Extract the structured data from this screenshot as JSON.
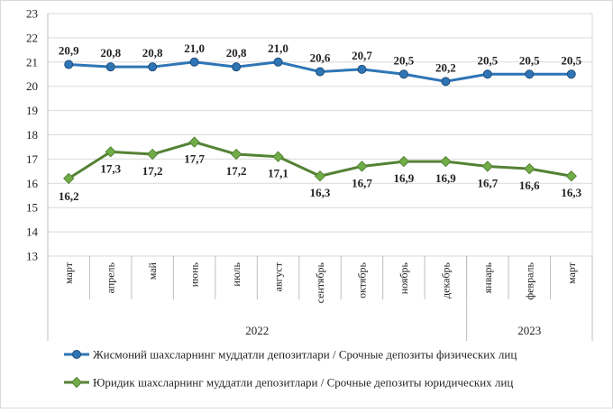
{
  "chart_data": {
    "type": "line",
    "categories": [
      "март",
      "апрель",
      "май",
      "июнь",
      "июль",
      "август",
      "сентябрь",
      "октябрь",
      "ноябрь",
      "декабрь",
      "январь",
      "февраль",
      "март"
    ],
    "year_groups": [
      {
        "label": "2022",
        "from": 0,
        "to": 9
      },
      {
        "label": "2023",
        "from": 10,
        "to": 12
      }
    ],
    "series": [
      {
        "name": "Жисмоний шахсларнинг муддатли депозитлари / Срочные депозиты физических лиц",
        "color": "#2E75B6",
        "marker": "circle",
        "values": [
          20.9,
          20.8,
          20.8,
          21.0,
          20.8,
          21.0,
          20.6,
          20.7,
          20.5,
          20.2,
          20.5,
          20.5,
          20.5
        ],
        "labels": [
          "20,9",
          "20,8",
          "20,8",
          "21,0",
          "20,8",
          "21,0",
          "20,6",
          "20,7",
          "20,5",
          "20,2",
          "20,5",
          "20,5",
          "20,5"
        ]
      },
      {
        "name": "Юридик шахсларнинг муддатли депозитлари / Срочные депозиты юридических лиц",
        "color": "#548235",
        "marker": "diamond",
        "values": [
          16.2,
          17.3,
          17.2,
          17.7,
          17.2,
          17.1,
          16.3,
          16.7,
          16.9,
          16.9,
          16.7,
          16.6,
          16.3
        ],
        "labels": [
          "16,2",
          "17,3",
          "17,2",
          "17,7",
          "17,2",
          "17,1",
          "16,3",
          "16,7",
          "16,9",
          "16,9",
          "16,7",
          "16,6",
          "16,3"
        ]
      }
    ],
    "y_ticks": [
      "13",
      "14",
      "15",
      "16",
      "17",
      "18",
      "19",
      "20",
      "21",
      "22",
      "23"
    ],
    "ylim": [
      13,
      23
    ],
    "grid": true,
    "legend_position": "bottom"
  }
}
